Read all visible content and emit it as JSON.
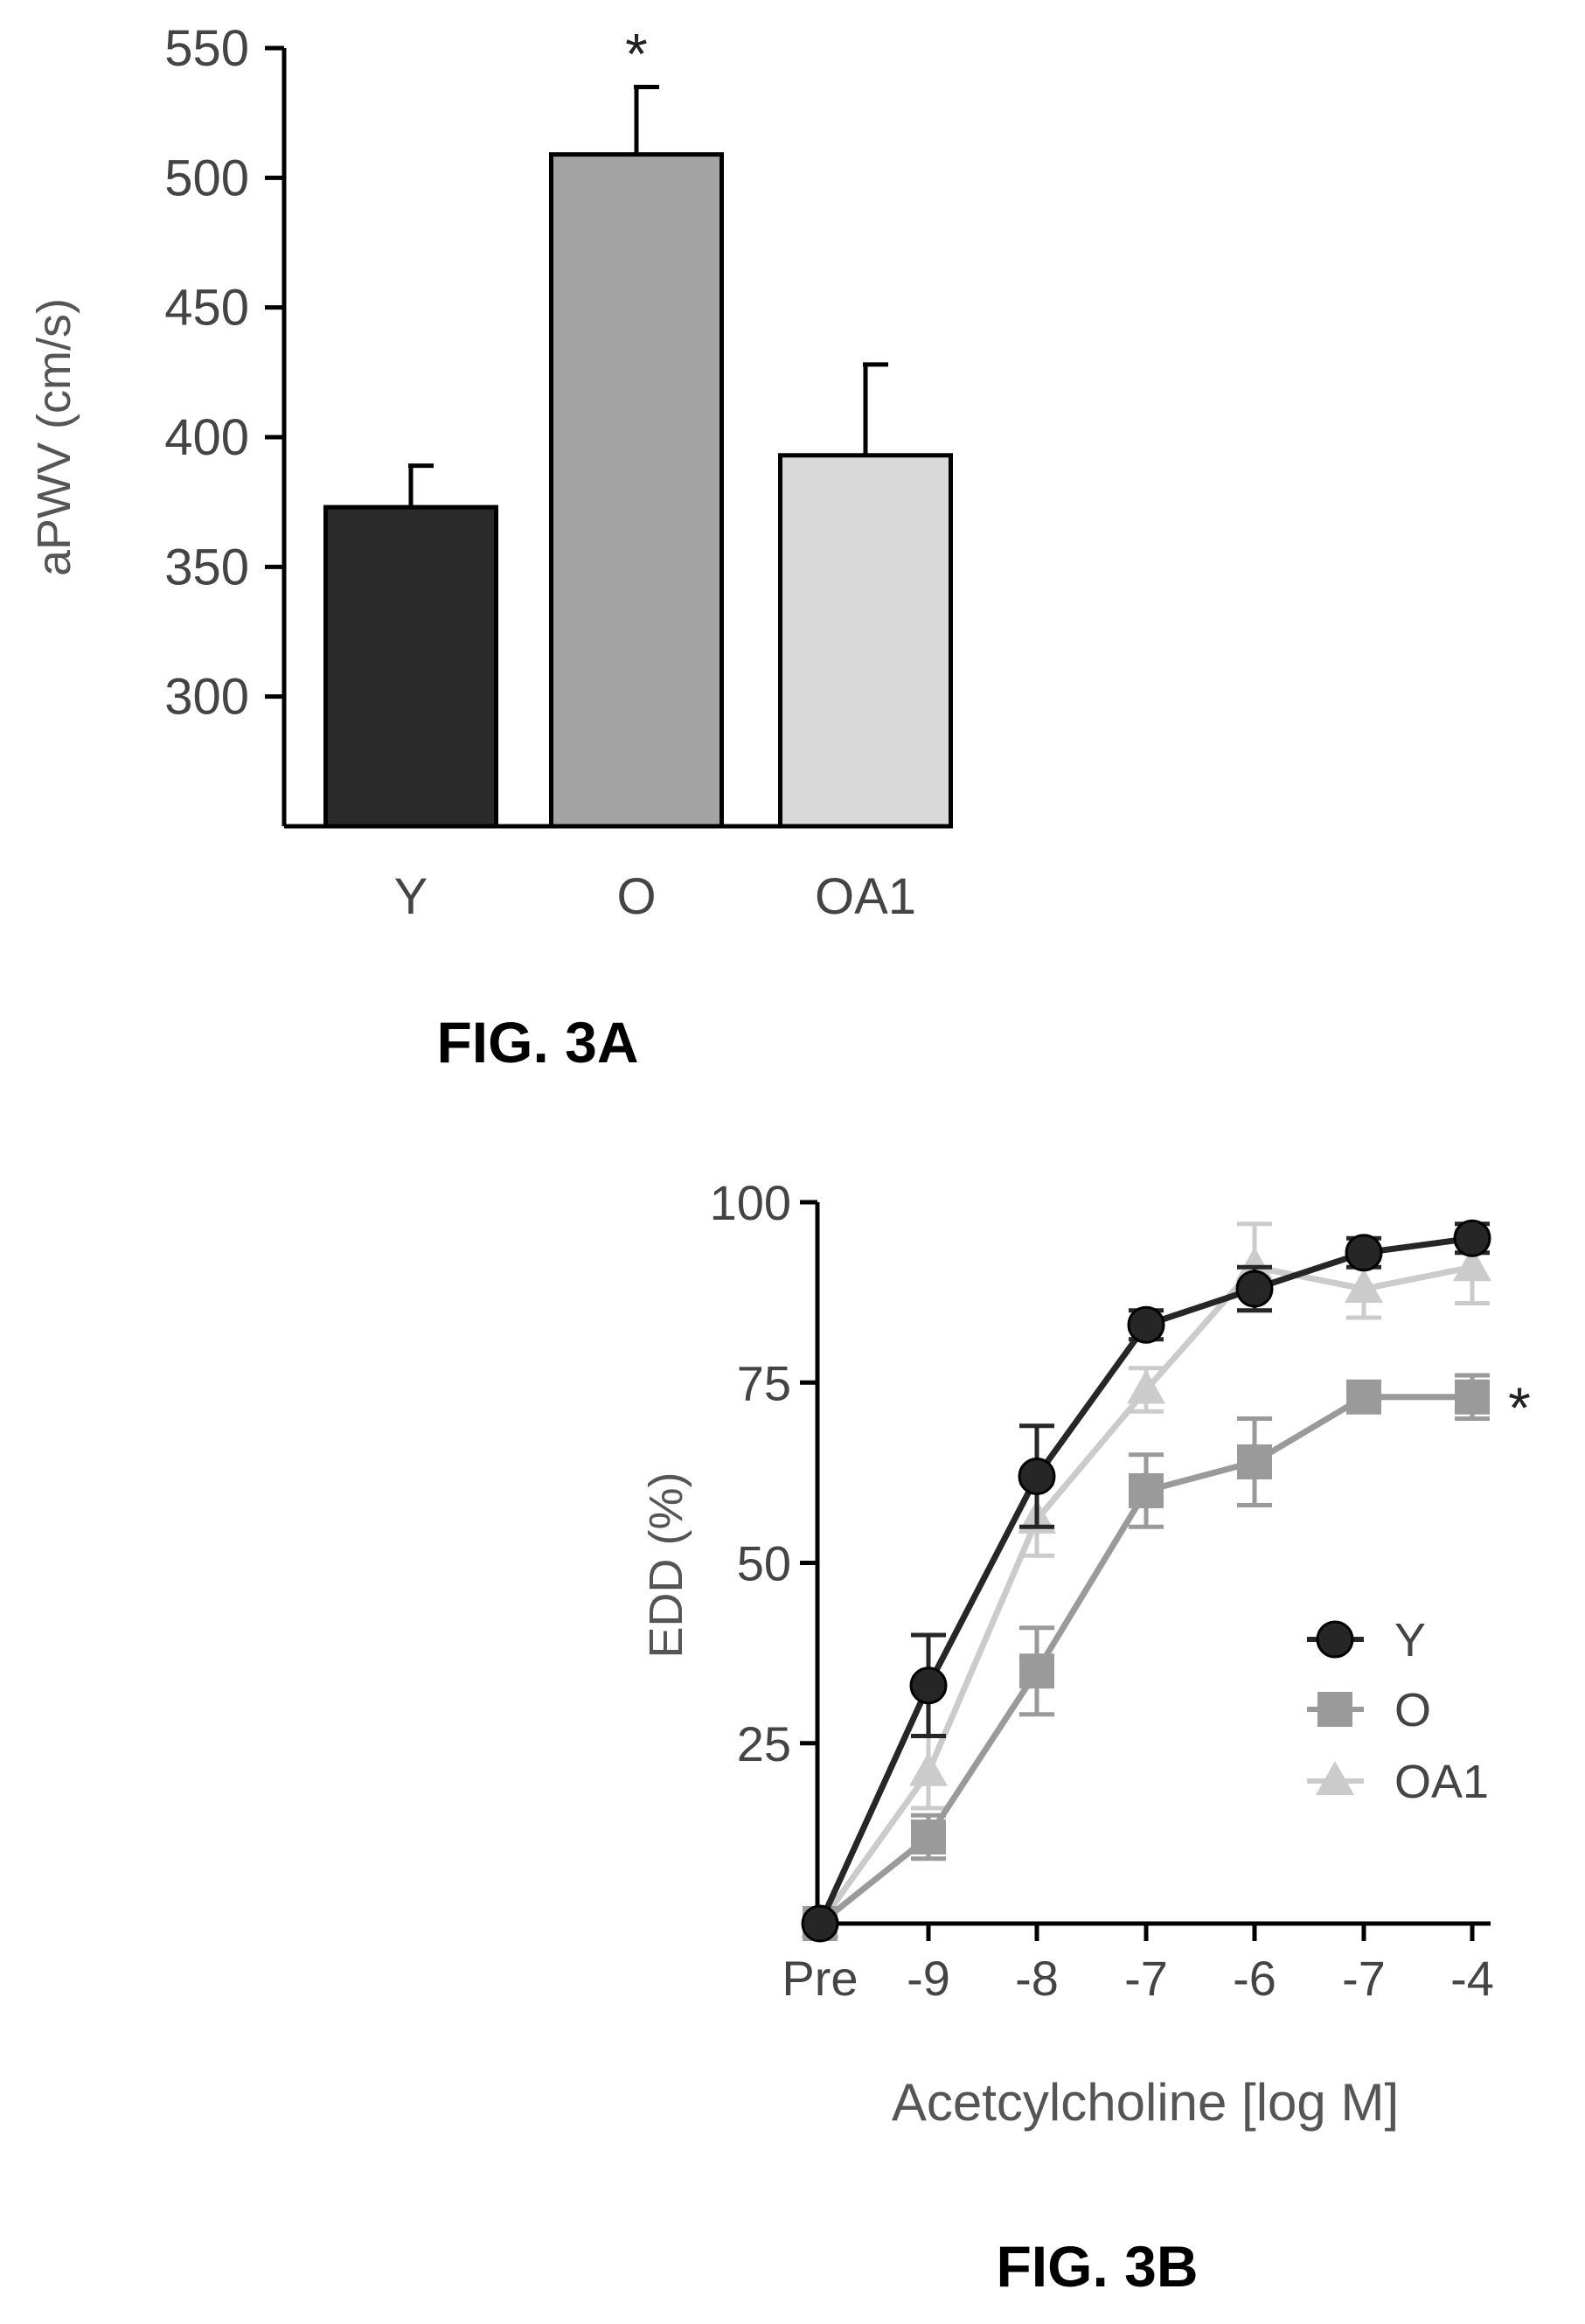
{
  "chart_data": [
    {
      "type": "bar",
      "caption": "FIG. 3A",
      "ylabel": "aPWV (cm/s)",
      "ylim": [
        250,
        550
      ],
      "yticks": [
        300,
        350,
        400,
        450,
        500,
        550
      ],
      "categories": [
        "Y",
        "O",
        "OA1"
      ],
      "values": [
        373,
        509,
        393
      ],
      "errors": [
        16,
        26,
        35
      ],
      "colors": [
        "#2a2a2a",
        "#a3a3a3",
        "#d9d9d9"
      ],
      "significance": [
        "",
        "*",
        ""
      ]
    },
    {
      "type": "line",
      "caption": "FIG. 3B",
      "xlabel": "Acetcylcholine [log M]",
      "ylabel": "EDD (%)",
      "ylim": [
        0,
        100
      ],
      "yticks": [
        25,
        50,
        75,
        100
      ],
      "categories": [
        "Pre",
        "-9",
        "-8",
        "-7",
        "-6",
        "-7",
        "-4"
      ],
      "series": [
        {
          "name": "Y",
          "marker": "circle",
          "color": "#262626",
          "values": [
            0,
            33,
            62,
            83,
            88,
            93,
            95
          ],
          "errors": [
            0,
            7,
            7,
            2,
            3,
            2,
            2
          ]
        },
        {
          "name": "O",
          "marker": "square",
          "color": "#9a9a9a",
          "values": [
            0,
            12,
            35,
            60,
            64,
            73,
            73
          ],
          "errors": [
            0,
            3,
            6,
            5,
            6,
            2,
            3
          ]
        },
        {
          "name": "OA1",
          "marker": "triangle",
          "color": "#cbcbcb",
          "values": [
            0,
            21,
            56,
            74,
            91,
            88,
            91
          ],
          "errors": [
            0,
            5,
            5,
            3,
            6,
            4,
            5
          ]
        }
      ],
      "significance_label": "*",
      "legend_position": "right"
    }
  ]
}
